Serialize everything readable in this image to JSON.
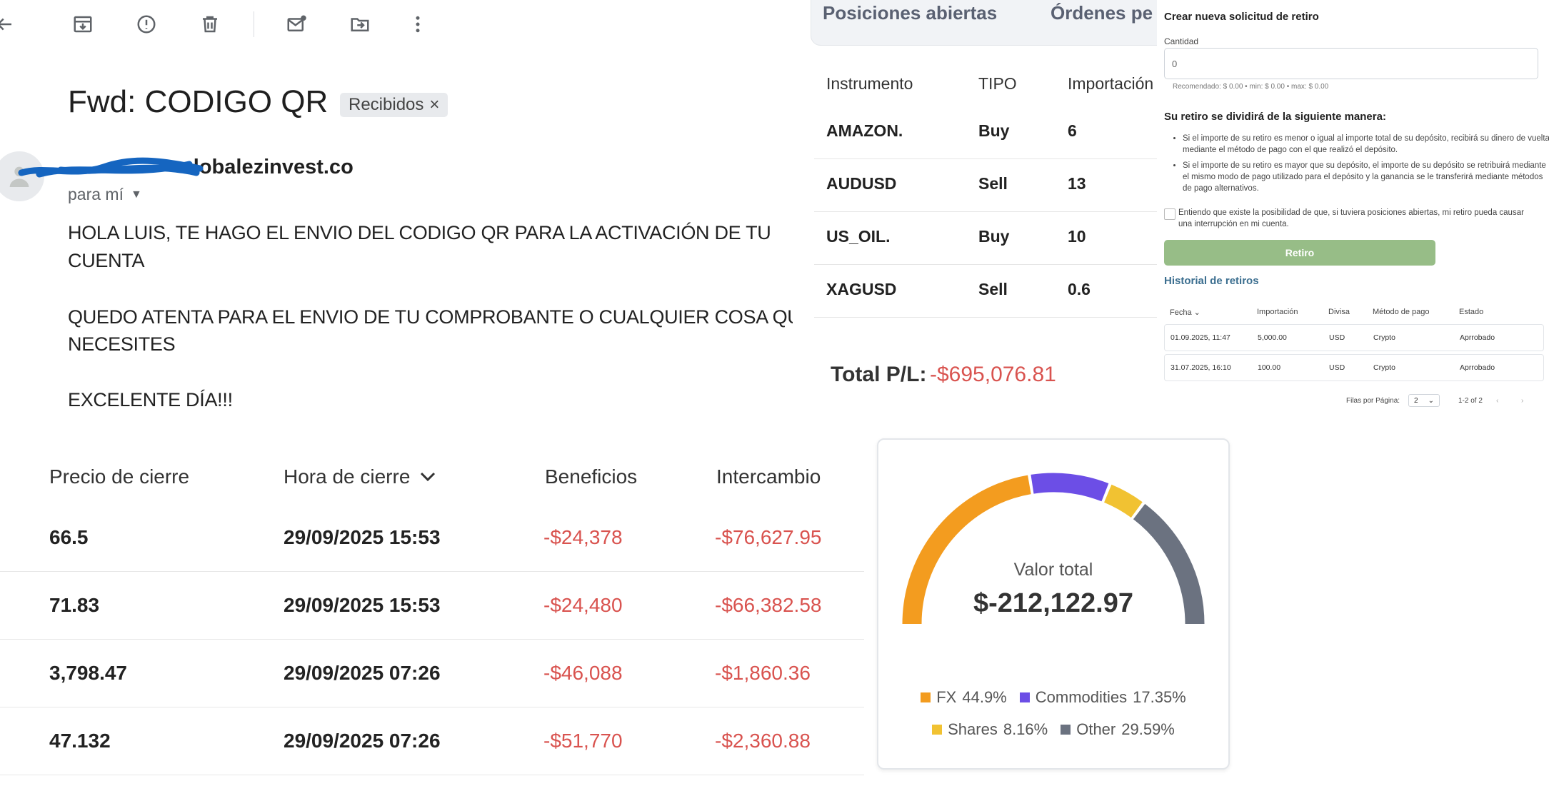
{
  "email": {
    "toolbar_icons": [
      "back-arrow-icon",
      "archive-icon",
      "report-spam-icon",
      "delete-icon",
      "mark-unread-icon",
      "move-to-icon",
      "more-vertical-icon"
    ],
    "subject": "Fwd: CODIGO QR",
    "label": "Recibidos",
    "sender": "lobalezinvest.co",
    "recipient": "para mí",
    "body_lines": [
      "HOLA LUIS, TE HAGO EL ENVIO DEL CODIGO QR PARA LA ACTIVACIÓN DE TU",
      "CUENTA",
      "QUEDO ATENTA PARA EL ENVIO DE TU COMPROBANTE O CUALQUIER COSA QU",
      "NECESITES",
      "EXCELENTE DÍA!!!"
    ]
  },
  "positions": {
    "tabs": [
      "Posiciones abiertas",
      "Órdenes pe"
    ],
    "headers": [
      "Instrumento",
      "TIPO",
      "Importación"
    ],
    "rows": [
      {
        "instrument": "AMAZON.",
        "type": "Buy",
        "amount": "6"
      },
      {
        "instrument": "AUDUSD",
        "type": "Sell",
        "amount": "13"
      },
      {
        "instrument": "US_OIL.",
        "type": "Buy",
        "amount": "10"
      },
      {
        "instrument": "XAGUSD",
        "type": "Sell",
        "amount": "0.6"
      }
    ],
    "total_label": "Total P/L:",
    "total_value": "-$695,076.81"
  },
  "withdraw": {
    "title": "Crear nueva solicitud de retiro",
    "quantity_label": "Cantidad",
    "quantity_value": "0",
    "hint": "Recomendado: $ 0.00 • min: $ 0.00 • max: $ 0.00",
    "split_title": "Su retiro se dividirá de la siguiente manera:",
    "bullets": [
      "Si el importe de su retiro es menor o igual al importe total de su depósito, recibirá su dinero de vuelta mediante el método de pago con el que realizó el depósito.",
      "Si el importe de su retiro es mayor que su depósito, el importe de su depósito se retribuirá mediante el mismo modo de pago utilizado para el depósito y la ganancia se le transferirá mediante métodos de pago alternativos."
    ],
    "checkbox_text": "Entiendo que existe la posibilidad de que, si tuviera posiciones abiertas, mi retiro pueda causar una interrupción en mi cuenta.",
    "button": "Retiro",
    "history_title": "Historial de retiros",
    "history_headers": [
      "Fecha",
      "Importación",
      "Divisa",
      "Método de pago",
      "Estado"
    ],
    "history_rows": [
      {
        "date": "01.09.2025, 11:47",
        "amount": "5,000.00",
        "currency": "USD",
        "method": "Crypto",
        "status": "Aprrobado"
      },
      {
        "date": "31.07.2025, 16:10",
        "amount": "100.00",
        "currency": "USD",
        "method": "Crypto",
        "status": "Aprrobado"
      }
    ],
    "rows_per_page_label": "Filas por Página:",
    "rows_per_page": "2",
    "range": "1-2 of 2"
  },
  "closed": {
    "headers": [
      "Precio de cierre",
      "Hora de cierre",
      "Beneficios",
      "Intercambio"
    ],
    "rows": [
      {
        "price": "66.5",
        "time": "29/09/2025 15:53",
        "profit": "-$24,378",
        "swap": "-$76,627.95"
      },
      {
        "price": "71.83",
        "time": "29/09/2025 15:53",
        "profit": "-$24,480",
        "swap": "-$66,382.58"
      },
      {
        "price": "3,798.47",
        "time": "29/09/2025 07:26",
        "profit": "-$46,088",
        "swap": "-$1,860.36"
      },
      {
        "price": "47.132",
        "time": "29/09/2025 07:26",
        "profit": "-$51,770",
        "swap": "-$2,360.88"
      }
    ]
  },
  "gauge": {
    "label": "Valor total",
    "value": "$-212,122.97",
    "segments": [
      {
        "name": "FX",
        "percent_label": "44.9%",
        "value": 44.9,
        "color": "#f39c1f"
      },
      {
        "name": "Commodities",
        "percent_label": "17.35%",
        "value": 17.35,
        "color": "#6c4ee6"
      },
      {
        "name": "Shares",
        "percent_label": "8.16%",
        "value": 8.16,
        "color": "#f1c232"
      },
      {
        "name": "Other",
        "percent_label": "29.59%",
        "value": 29.59,
        "color": "#6b7280"
      }
    ]
  }
}
